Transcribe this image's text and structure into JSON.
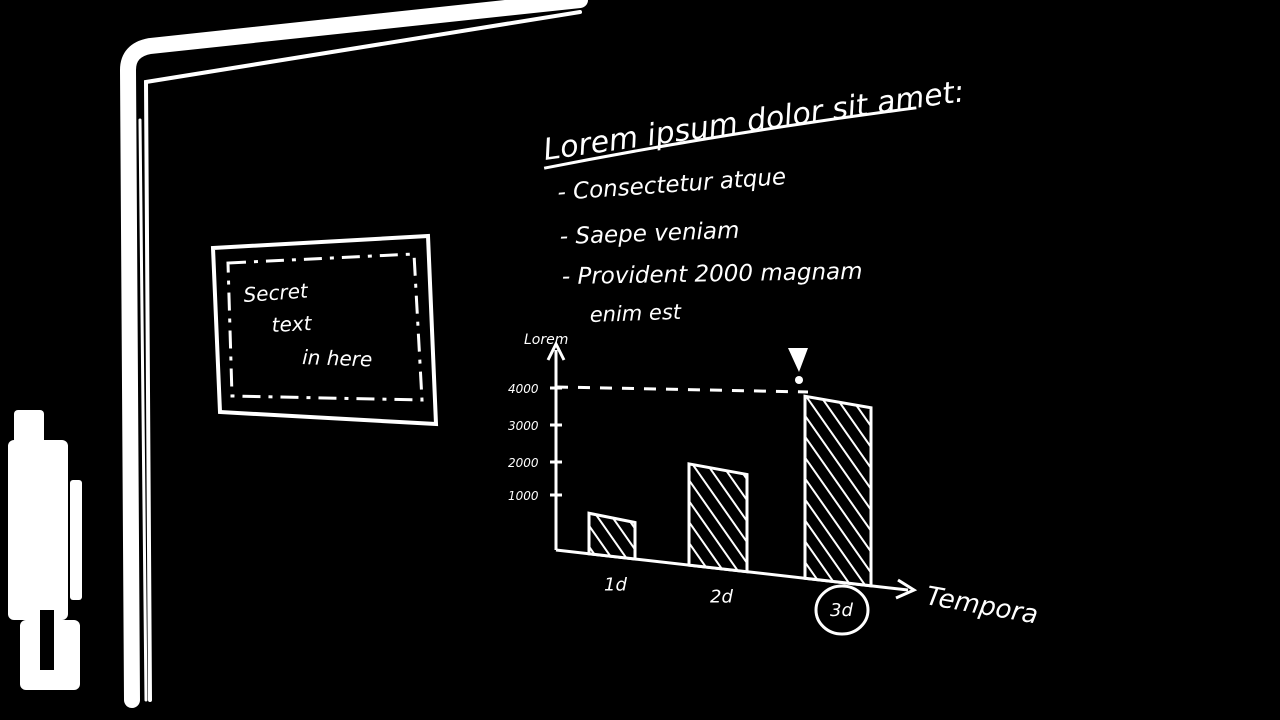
{
  "colors": {
    "board": "#000000",
    "chalk": "#ffffff"
  },
  "heading": "Lorem ipsum dolor sit amet:",
  "bullets": [
    "- Consectetur atque",
    "- Saepe veniam",
    "- Provident 2000 magnam",
    "enim est"
  ],
  "box_text": [
    "Secret",
    "text",
    "in here"
  ],
  "chart_data": {
    "type": "bar",
    "ylabel": "Lorem",
    "xlabel": "Tempora",
    "categories": [
      "1d",
      "2d",
      "3d"
    ],
    "values": [
      1000,
      2500,
      4000
    ],
    "y_ticks": [
      "1000",
      "2000",
      "3000",
      "4000"
    ],
    "highlight_category": "3d",
    "marker": "!"
  }
}
